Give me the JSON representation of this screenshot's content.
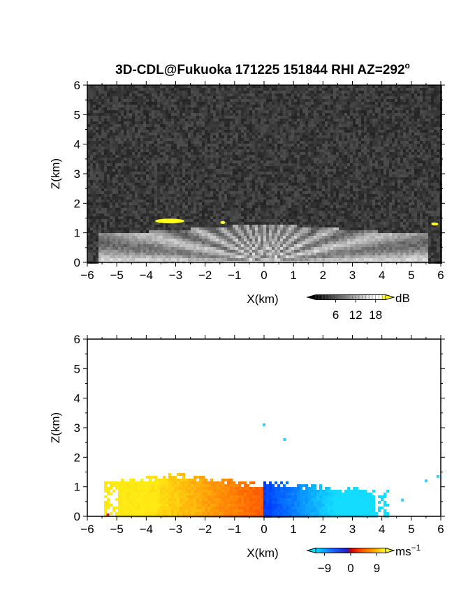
{
  "chart_data": [
    {
      "type": "heatmap",
      "title": "3D-CDL@Fukuoka 171225 151844 RHI AZ=292",
      "title_superscript": "o",
      "xlabel": "X(km)",
      "ylabel": "Z(km)",
      "xlim": [
        -6,
        6
      ],
      "ylim": [
        0,
        6
      ],
      "xticks": [
        "-6",
        "-5",
        "-4",
        "-3",
        "-2",
        "-1",
        "0",
        "1",
        "2",
        "3",
        "4",
        "5",
        "6"
      ],
      "yticks": [
        "0",
        "1",
        "2",
        "3",
        "4",
        "5",
        "6"
      ],
      "colorbar": {
        "unit": "dB",
        "ticks": [
          "6",
          "12",
          "18"
        ],
        "range": [
          0,
          21
        ]
      },
      "field": "signal-to-noise ratio (grayscale, bright fan below ~1.3 km, yellow patches >18 dB near x=-3, z=1.4)"
    },
    {
      "type": "heatmap",
      "title": "",
      "xlabel": "X(km)",
      "ylabel": "Z(km)",
      "xlim": [
        -6,
        6
      ],
      "ylim": [
        0,
        6
      ],
      "xticks": [
        "-6",
        "-5",
        "-4",
        "-3",
        "-2",
        "-1",
        "0",
        "1",
        "2",
        "3",
        "4",
        "5",
        "6"
      ],
      "yticks": [
        "0",
        "1",
        "2",
        "3",
        "4",
        "5",
        "6"
      ],
      "colorbar": {
        "unit": "ms",
        "unit_superscript": "-1",
        "ticks": [
          "-9",
          "0",
          "9"
        ],
        "range": [
          -12,
          12
        ]
      },
      "field": "radial velocity: positive (yellow/orange) for x<0, negative (blue/cyan) for x>0, echoes up to ~1.4 km"
    }
  ]
}
